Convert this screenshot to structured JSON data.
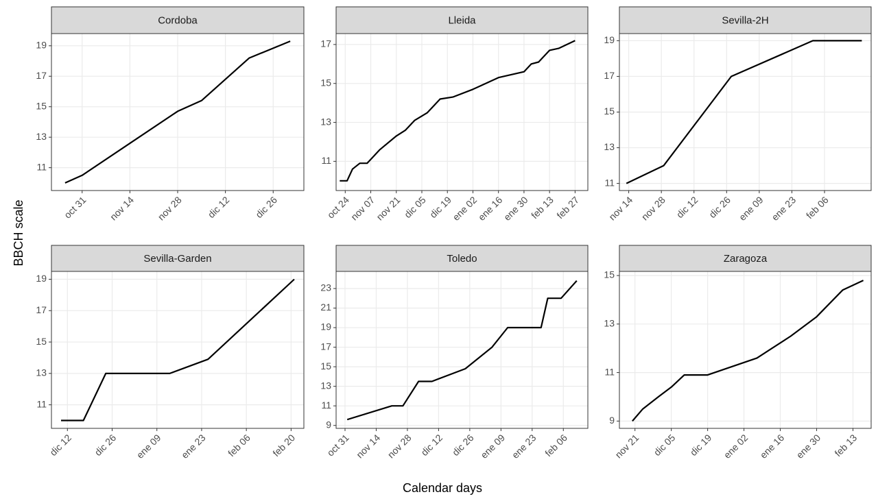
{
  "ylabel": "BBCH scale",
  "xlabel": "Calendar days",
  "chart_data": [
    {
      "type": "line",
      "title": "Cordoba",
      "grid": true,
      "color": "#000000",
      "x": [
        "oct 26",
        "oct 31",
        "nov 14",
        "nov 28",
        "dic 05",
        "dic 12",
        "dic 19",
        "dic 31"
      ],
      "values": [
        10.0,
        10.5,
        12.6,
        14.7,
        15.4,
        16.8,
        18.2,
        19.3
      ],
      "xlim": [
        "oct 22",
        "ene 04"
      ],
      "xticks": [
        "oct 31",
        "nov 14",
        "nov 28",
        "dic 12",
        "dic 26"
      ],
      "ylim": [
        9.5,
        19.8
      ],
      "yticks": [
        11,
        13,
        15,
        17,
        19
      ]
    },
    {
      "type": "line",
      "title": "Lleida",
      "grid": true,
      "color": "#000000",
      "x": [
        "oct 21",
        "oct 25",
        "oct 28",
        "nov 01",
        "nov 05",
        "nov 12",
        "nov 21",
        "nov 26",
        "dic 01",
        "dic 08",
        "dic 15",
        "dic 22",
        "ene 02",
        "ene 16",
        "ene 30",
        "feb 03",
        "feb 07",
        "feb 13",
        "feb 18",
        "feb 27"
      ],
      "values": [
        10.0,
        10.0,
        10.6,
        10.9,
        10.9,
        11.6,
        12.3,
        12.6,
        13.1,
        13.5,
        14.2,
        14.3,
        14.7,
        15.3,
        15.6,
        16.0,
        16.1,
        16.7,
        16.8,
        17.2
      ],
      "xlim": [
        "oct 19",
        "mar 06"
      ],
      "xticks": [
        "oct 24",
        "nov 07",
        "nov 21",
        "dic 05",
        "dic 19",
        "ene 02",
        "ene 16",
        "ene 30",
        "feb 13",
        "feb 27"
      ],
      "ylim": [
        9.5,
        17.56
      ],
      "yticks": [
        11,
        13,
        15,
        17
      ]
    },
    {
      "type": "line",
      "title": "Sevilla-2H",
      "grid": true,
      "color": "#000000",
      "x": [
        "nov 13",
        "nov 29",
        "dic 28",
        "feb 01",
        "feb 22"
      ],
      "values": [
        11.0,
        12.0,
        17.0,
        19.0,
        19.0
      ],
      "xlim": [
        "nov 10",
        "feb 26"
      ],
      "xticks": [
        "nov 14",
        "nov 28",
        "dic 12",
        "dic 26",
        "ene 09",
        "ene 23",
        "feb 06"
      ],
      "ylim": [
        10.6,
        19.4
      ],
      "yticks": [
        11,
        13,
        15,
        17,
        19
      ]
    },
    {
      "type": "line",
      "title": "Sevilla-Garden",
      "grid": true,
      "color": "#000000",
      "x": [
        "dic 10",
        "dic 17",
        "dic 24",
        "ene 13",
        "ene 25",
        "feb 21"
      ],
      "values": [
        10.0,
        10.0,
        13.0,
        13.0,
        13.9,
        19.0
      ],
      "xlim": [
        "dic 07",
        "feb 24"
      ],
      "xticks": [
        "dic 12",
        "dic 26",
        "ene 09",
        "ene 23",
        "feb 06",
        "feb 20"
      ],
      "ylim": [
        9.5,
        19.5
      ],
      "yticks": [
        11,
        13,
        15,
        17,
        19
      ]
    },
    {
      "type": "line",
      "title": "Toledo",
      "grid": true,
      "color": "#000000",
      "x": [
        "nov 01",
        "nov 21",
        "nov 26",
        "dic 03",
        "dic 09",
        "dic 24",
        "ene 05",
        "ene 12",
        "ene 27",
        "ene 30",
        "feb 05",
        "feb 12"
      ],
      "values": [
        9.6,
        11.0,
        11.0,
        13.5,
        13.5,
        14.8,
        17.0,
        19.0,
        19.0,
        22.0,
        22.0,
        23.8
      ],
      "xlim": [
        "oct 27",
        "feb 17"
      ],
      "xticks": [
        "oct 31",
        "nov 14",
        "nov 28",
        "dic 12",
        "dic 26",
        "ene 09",
        "ene 23",
        "feb 06"
      ],
      "ylim": [
        8.7,
        24.75
      ],
      "yticks": [
        9,
        11,
        13,
        15,
        17,
        19,
        21,
        23
      ]
    },
    {
      "type": "line",
      "title": "Zaragoza",
      "grid": true,
      "color": "#000000",
      "x": [
        "nov 20",
        "nov 24",
        "nov 30",
        "dic 05",
        "dic 10",
        "dic 19",
        "ene 07",
        "ene 20",
        "ene 30",
        "feb 09",
        "feb 17"
      ],
      "values": [
        9.0,
        9.5,
        10.0,
        10.4,
        10.9,
        10.9,
        11.6,
        12.5,
        13.3,
        14.4,
        14.8
      ],
      "xlim": [
        "nov 15",
        "feb 20"
      ],
      "xticks": [
        "nov 21",
        "dic 05",
        "dic 19",
        "ene 02",
        "ene 16",
        "ene 30",
        "feb 13"
      ],
      "ylim": [
        8.7,
        15.17
      ],
      "yticks": [
        9,
        11,
        13,
        15
      ]
    }
  ]
}
